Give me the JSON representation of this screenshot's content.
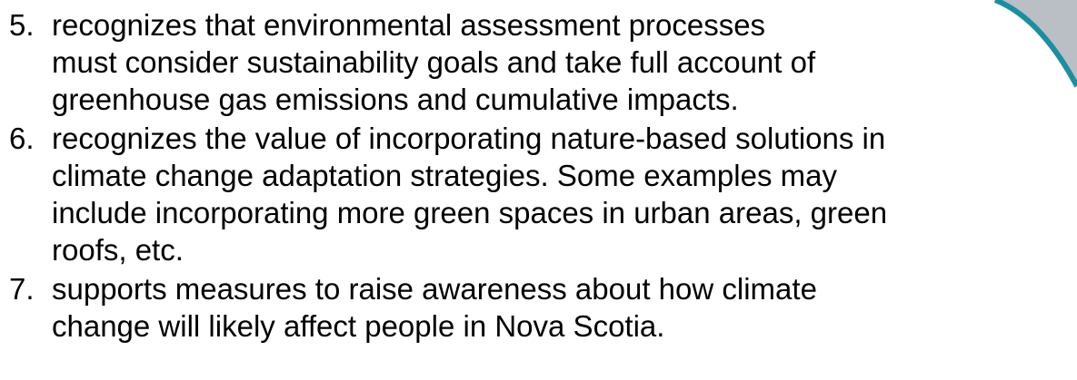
{
  "items": [
    {
      "number": "5.",
      "lines": [
        "recognizes that environmental assessment processes",
        "must consider sustainability goals and take full account of",
        "greenhouse gas emissions and cumulative impacts."
      ]
    },
    {
      "number": "6.",
      "lines": [
        "recognizes the value of incorporating nature-based solutions in",
        "climate change adaptation strategies. Some examples may",
        "include incorporating more green spaces in urban areas, green",
        "roofs, etc."
      ]
    },
    {
      "number": "7.",
      "lines": [
        "supports measures to raise awareness about how climate",
        "change will likely affect people in Nova Scotia."
      ]
    }
  ]
}
